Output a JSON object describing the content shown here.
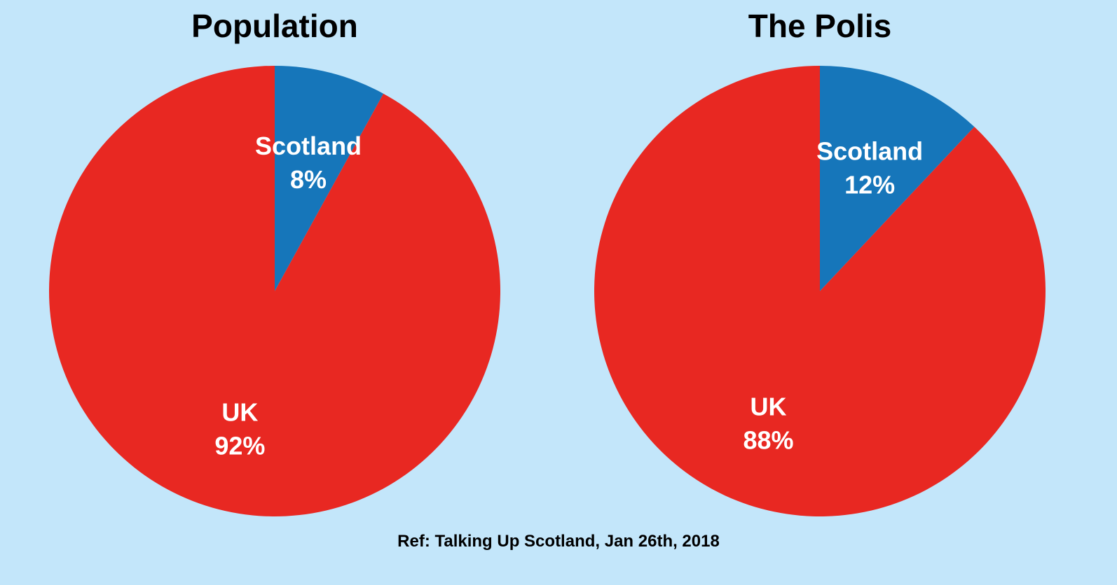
{
  "colors": {
    "background": "#c3e6fa",
    "scotland": "#1676ba",
    "uk": "#e82822"
  },
  "footer": {
    "reference": "Ref: Talking Up Scotland, Jan 26th, 2018"
  },
  "chart_data": [
    {
      "type": "pie",
      "title": "Population",
      "slices": [
        {
          "label": "Scotland",
          "value": 8,
          "value_label": "8%",
          "color": "#1676ba"
        },
        {
          "label": "UK",
          "value": 92,
          "value_label": "92%",
          "color": "#e82822"
        }
      ],
      "start_angle": "12 o'clock",
      "direction": "clockwise"
    },
    {
      "type": "pie",
      "title": "The Polis",
      "slices": [
        {
          "label": "Scotland",
          "value": 12,
          "value_label": "12%",
          "color": "#1676ba"
        },
        {
          "label": "UK",
          "value": 88,
          "value_label": "88%",
          "color": "#e82822"
        }
      ],
      "start_angle": "12 o'clock",
      "direction": "clockwise"
    }
  ]
}
